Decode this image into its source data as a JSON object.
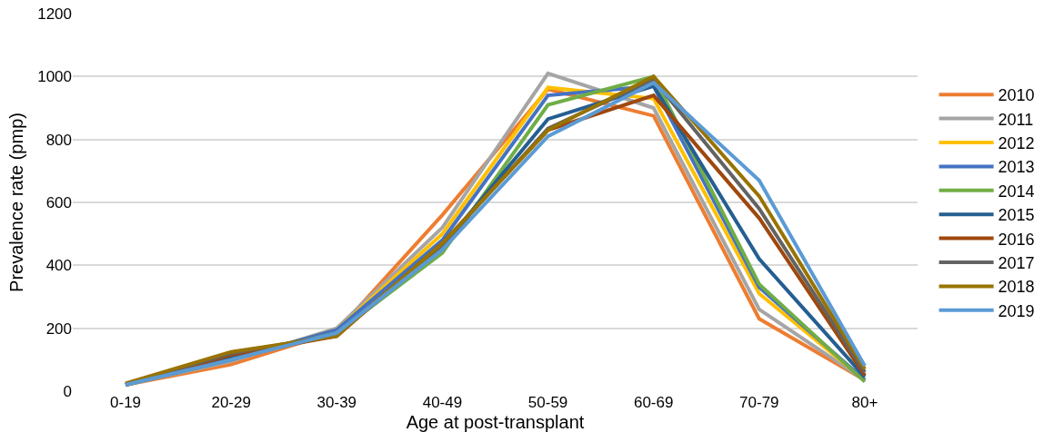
{
  "chart_data": {
    "type": "line",
    "xlabel": "Age at post-transplant",
    "ylabel": "Prevalence rate (pmp)",
    "categories": [
      "0-19",
      "20-29",
      "30-39",
      "40-49",
      "50-59",
      "60-69",
      "70-79",
      "80+"
    ],
    "ylim": [
      0,
      1200
    ],
    "yticks": [
      0,
      200,
      400,
      600,
      800,
      1000,
      1200
    ],
    "grid": "y",
    "legend": "right",
    "marker": "none",
    "line_style": "solid",
    "series": [
      {
        "name": "2010",
        "color": "#ed7d31",
        "values": [
          20,
          85,
          190,
          560,
          960,
          875,
          230,
          35
        ]
      },
      {
        "name": "2011",
        "color": "#a5a5a5",
        "values": [
          20,
          95,
          200,
          520,
          1010,
          900,
          260,
          35
        ]
      },
      {
        "name": "2012",
        "color": "#ffc000",
        "values": [
          20,
          100,
          195,
          500,
          965,
          930,
          310,
          35
        ]
      },
      {
        "name": "2013",
        "color": "#4472c4",
        "values": [
          20,
          100,
          195,
          480,
          940,
          970,
          330,
          35
        ]
      },
      {
        "name": "2014",
        "color": "#70ad47",
        "values": [
          20,
          105,
          185,
          440,
          910,
          1000,
          340,
          30
        ]
      },
      {
        "name": "2015",
        "color": "#255e91",
        "values": [
          20,
          110,
          180,
          460,
          865,
          970,
          420,
          45
        ]
      },
      {
        "name": "2016",
        "color": "#9e480e",
        "values": [
          20,
          115,
          175,
          470,
          830,
          940,
          550,
          50
        ]
      },
      {
        "name": "2017",
        "color": "#636363",
        "values": [
          22,
          120,
          180,
          465,
          835,
          990,
          580,
          60
        ]
      },
      {
        "name": "2018",
        "color": "#997300",
        "values": [
          25,
          125,
          175,
          470,
          830,
          1000,
          620,
          70
        ]
      },
      {
        "name": "2019",
        "color": "#5b9bd5",
        "values": [
          20,
          100,
          185,
          450,
          810,
          980,
          670,
          80
        ]
      }
    ]
  }
}
